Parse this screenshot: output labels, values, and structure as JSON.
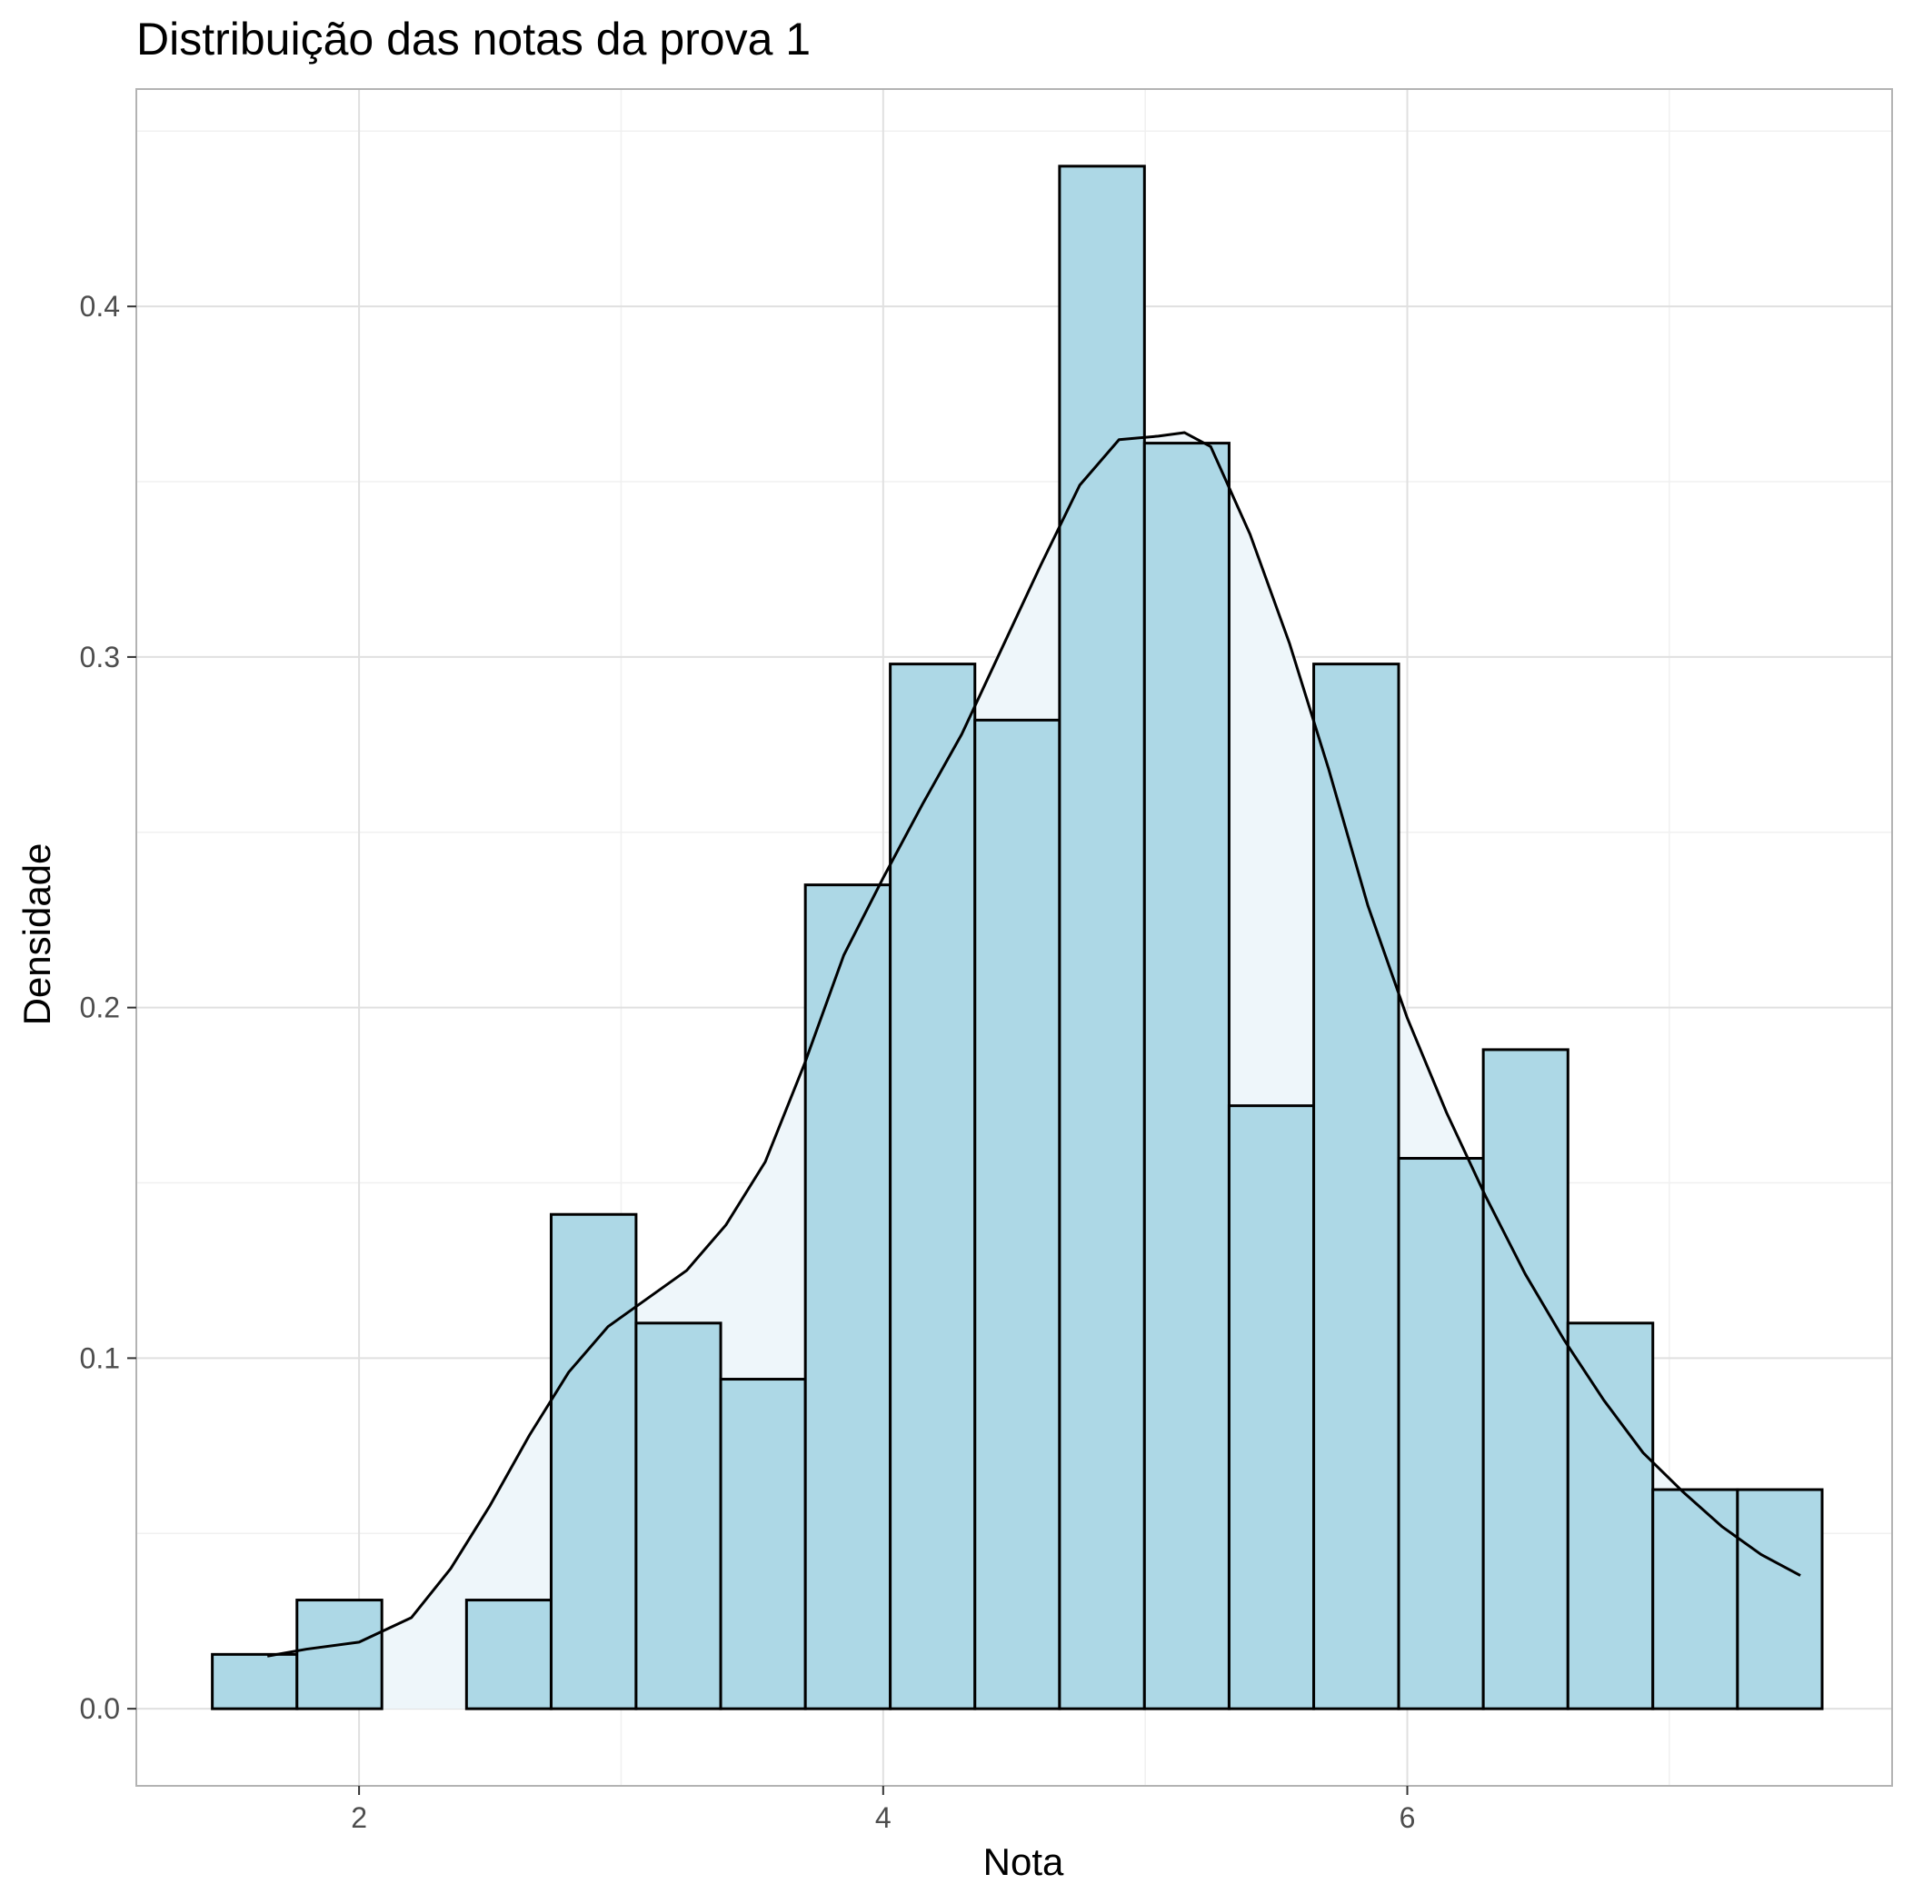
{
  "chart_data": {
    "type": "bar",
    "subtype": "histogram-with-density",
    "title": "Distribuição das notas da prova 1",
    "xlabel": "Nota",
    "ylabel": "Densidade",
    "xlim": [
      1.15,
      7.85
    ],
    "ylim": [
      -0.022,
      0.462
    ],
    "x_ticks": [
      2,
      4,
      6
    ],
    "x_tick_labels": [
      "2",
      "4",
      "6"
    ],
    "y_ticks": [
      0.0,
      0.1,
      0.2,
      0.3,
      0.4
    ],
    "y_tick_labels": [
      "0.0",
      "0.1",
      "0.2",
      "0.3",
      "0.4"
    ],
    "grid": true,
    "legend": "none",
    "bin_edges": [
      1.44,
      1.763,
      2.087,
      2.41,
      2.733,
      3.057,
      3.38,
      3.703,
      4.027,
      4.35,
      4.673,
      4.997,
      5.32,
      5.643,
      5.967,
      6.29,
      6.613,
      6.937,
      7.26,
      7.583
    ],
    "values": [
      0.0155,
      0.031,
      0.0,
      0.031,
      0.141,
      0.11,
      0.094,
      0.235,
      0.298,
      0.282,
      0.44,
      0.361,
      0.172,
      0.298,
      0.157,
      0.188,
      0.11,
      0.0625,
      0.0625
    ],
    "density_x": [
      1.65,
      1.8,
      2.0,
      2.2,
      2.35,
      2.5,
      2.65,
      2.8,
      2.95,
      3.1,
      3.25,
      3.4,
      3.55,
      3.7,
      3.85,
      4.0,
      4.15,
      4.3,
      4.45,
      4.6,
      4.75,
      4.9,
      5.05,
      5.15,
      5.25,
      5.4,
      5.55,
      5.7,
      5.85,
      6.0,
      6.15,
      6.3,
      6.45,
      6.6,
      6.75,
      6.9,
      7.05,
      7.2,
      7.35,
      7.5
    ],
    "density_y": [
      0.015,
      0.017,
      0.019,
      0.026,
      0.04,
      0.058,
      0.078,
      0.096,
      0.109,
      0.117,
      0.125,
      0.138,
      0.156,
      0.184,
      0.215,
      0.237,
      0.258,
      0.278,
      0.302,
      0.326,
      0.349,
      0.362,
      0.363,
      0.364,
      0.36,
      0.335,
      0.304,
      0.268,
      0.229,
      0.197,
      0.17,
      0.146,
      0.124,
      0.105,
      0.088,
      0.073,
      0.062,
      0.052,
      0.044,
      0.038
    ],
    "colors": {
      "bar_fill": "#add8e6",
      "bar_stroke": "#000000",
      "density_fill": "#eef6fa",
      "density_line": "#000000",
      "grid_major": "#e0e0e0",
      "grid_minor": "#f0f0f0",
      "panel_border": "#b3b3b3"
    }
  }
}
